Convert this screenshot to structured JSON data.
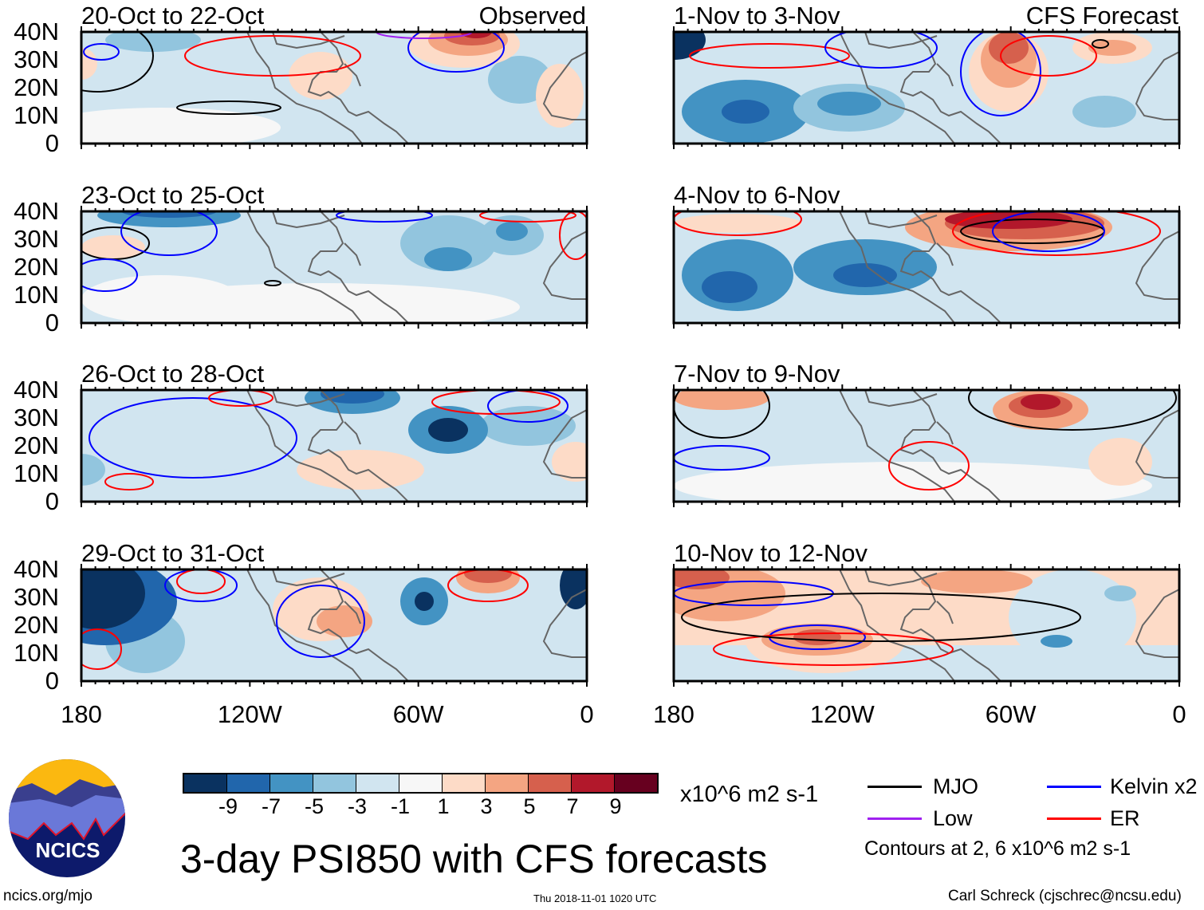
{
  "panels": [
    {
      "title": "20-Oct to 22-Oct",
      "tag": "Observed"
    },
    {
      "title": "1-Nov to 3-Nov",
      "tag": "CFS Forecast"
    },
    {
      "title": "23-Oct to 25-Oct",
      "tag": ""
    },
    {
      "title": "4-Nov to 6-Nov",
      "tag": ""
    },
    {
      "title": "26-Oct to 28-Oct",
      "tag": ""
    },
    {
      "title": "7-Nov to 9-Nov",
      "tag": ""
    },
    {
      "title": "29-Oct to 31-Oct",
      "tag": ""
    },
    {
      "title": "10-Nov to 12-Nov",
      "tag": ""
    }
  ],
  "y_labels": [
    "40N",
    "30N",
    "20N",
    "10N",
    "0"
  ],
  "x_labels": [
    "180",
    "120W",
    "60W",
    "0"
  ],
  "colorbar": {
    "colors": [
      "#0a3260",
      "#2166ac",
      "#4393c3",
      "#92c5de",
      "#d1e5f0",
      "#f7f7f7",
      "#fddbc7",
      "#f4a582",
      "#d6604d",
      "#b2182b",
      "#67001f"
    ],
    "labels": [
      "-9",
      "-7",
      "-5",
      "-3",
      "-1",
      "1",
      "3",
      "5",
      "7",
      "9"
    ],
    "units": "x10^6 m2 s-1"
  },
  "legend": {
    "items": [
      {
        "label": "MJO",
        "color": "#000000"
      },
      {
        "label": "Kelvin x2",
        "color": "#0000ff"
      },
      {
        "label": "Low",
        "color": "#a020f0"
      },
      {
        "label": "ER",
        "color": "#ff0000"
      }
    ],
    "contours_note": "Contours at 2, 6 x10^6 m2 s-1"
  },
  "title": "3-day PSI850 with CFS forecasts",
  "logo_text": "NCICS",
  "footer": {
    "url": "ncics.org/mjo",
    "timestamp": "Thu 2018-11-01 1020 UTC",
    "credit": "Carl Schreck (cjschrec@ncsu.edu)"
  }
}
